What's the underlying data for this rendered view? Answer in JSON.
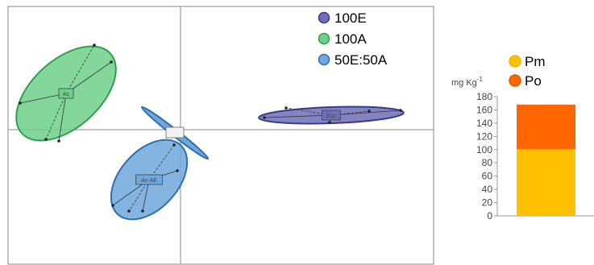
{
  "chart_data": [
    {
      "type": "scatter",
      "title": "",
      "xlabel": "",
      "ylabel": "",
      "grid": false,
      "legend_position": "top-right",
      "series": [
        {
          "name": "100E",
          "centroid_label": "Euc",
          "color": "#6f6fb8",
          "edge": "#3a3a8c"
        },
        {
          "name": "100A",
          "centroid_label": "Ac",
          "color": "#6fd08a",
          "edge": "#2f9e4e"
        },
        {
          "name": "50E:50A",
          "centroid_label": "Ac-AE",
          "color": "#6fa8dc",
          "edge": "#2f6fb0"
        }
      ]
    },
    {
      "type": "bar",
      "stacked": true,
      "ylabel": "mg Kg",
      "ylabel_superscript": "-1",
      "ylim": [
        0,
        180
      ],
      "yticks": [
        0,
        20,
        40,
        60,
        80,
        100,
        120,
        140,
        160,
        180
      ],
      "categories": [
        ""
      ],
      "legend_position": "top",
      "series": [
        {
          "name": "Pm",
          "values": [
            101
          ],
          "color": "#ffc000",
          "edge": "#f0b400"
        },
        {
          "name": "Po",
          "values": [
            67
          ],
          "color": "#ff6600",
          "edge": "#e05a00"
        }
      ]
    }
  ]
}
